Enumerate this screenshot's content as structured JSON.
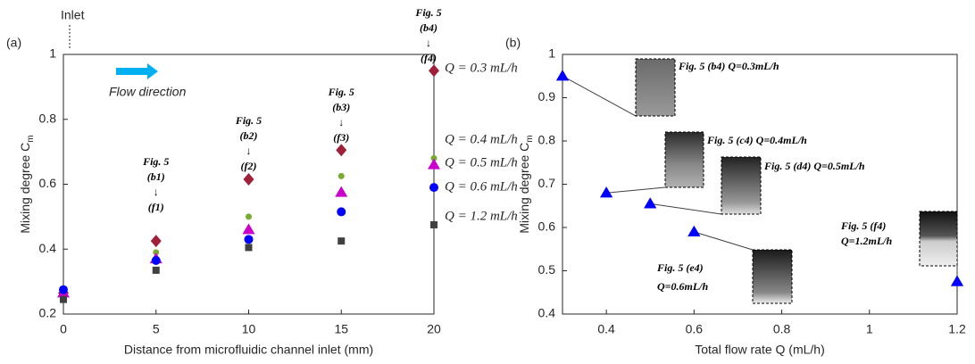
{
  "chart_data": [
    {
      "type": "scatter",
      "label": "(a)",
      "xlabel": "Distance from microfluidic channel inlet (mm)",
      "ylabel": "Mixing degree C",
      "ylabel_sub": "m",
      "x": [
        0,
        5,
        10,
        15,
        20
      ],
      "xlim": [
        0,
        20
      ],
      "xticks": [
        0,
        5,
        10,
        15,
        20
      ],
      "ylim": [
        0.2,
        1
      ],
      "yticks": [
        0.2,
        0.4,
        0.6,
        0.8,
        1
      ],
      "series": [
        {
          "name": "Q = 0.3 mL/h",
          "color": "#a0203a",
          "marker": "diamond",
          "values": [
            0.265,
            0.425,
            0.615,
            0.705,
            0.95
          ]
        },
        {
          "name": "Q = 0.4 mL/h",
          "color": "#77ac30",
          "marker": "circle-small",
          "values": [
            0.27,
            0.39,
            0.5,
            0.625,
            0.68
          ]
        },
        {
          "name": "Q = 0.5 mL/h",
          "color": "#cc00cc",
          "marker": "triangle",
          "values": [
            0.265,
            0.37,
            0.46,
            0.575,
            0.66
          ]
        },
        {
          "name": "Q = 0.6 mL/h",
          "color": "#0000ff",
          "marker": "circle",
          "values": [
            0.275,
            0.365,
            0.43,
            0.515,
            0.59
          ]
        },
        {
          "name": "Q = 1.2 mL/h",
          "color": "#404040",
          "marker": "square",
          "values": [
            0.245,
            0.335,
            0.405,
            0.425,
            0.475
          ]
        }
      ],
      "inlet": "Inlet",
      "flow": "Flow direction",
      "figure_refs": [
        [
          "Fig. 5",
          "(b1)",
          "↓",
          "(f1)"
        ],
        [
          "Fig. 5",
          "(b2)",
          "↓",
          "(f2)"
        ],
        [
          "Fig. 5",
          "(b3)",
          "↓",
          "(f3)"
        ],
        [
          "Fig. 5",
          "(b4)",
          "↓",
          "(f4)"
        ]
      ]
    },
    {
      "type": "scatter",
      "label": "(b)",
      "xlabel": "Total flow rate Q (mL/h)",
      "ylabel": "Mixing degree C",
      "ylabel_sub": "m",
      "x": [
        0.3,
        0.4,
        0.5,
        0.6,
        1.2
      ],
      "xlim": [
        0.3,
        1.2
      ],
      "xticks": [
        0.4,
        0.6,
        0.8,
        1,
        1.2
      ],
      "ylim": [
        0.4,
        1
      ],
      "yticks": [
        0.4,
        0.5,
        0.6,
        0.7,
        0.8,
        0.9,
        1
      ],
      "color": "#0000ff",
      "marker": "triangle",
      "values": [
        0.95,
        0.68,
        0.655,
        0.59,
        0.475
      ],
      "insets": [
        [
          "Fig. 5 (b4) Q=0.3mL/h"
        ],
        [
          "Fig. 5 (c4) Q=0.4mL/h"
        ],
        [
          "Fig. 5 (d4) Q=0.5mL/h"
        ],
        [
          "Fig. 5 (e4)",
          "Q=0.6mL/h"
        ],
        [
          "Fig. 5 (f4)",
          "Q=1.2mL/h"
        ]
      ]
    }
  ]
}
